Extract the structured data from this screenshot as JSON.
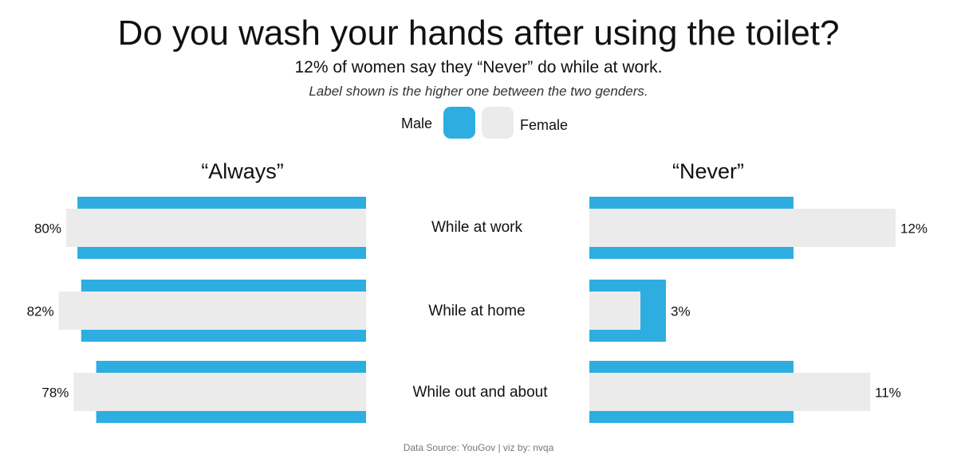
{
  "chart_data": {
    "type": "bar",
    "title": "Do you wash your hands after using the toilet?",
    "subtitle": "12% of women say they “Never” do while at work.",
    "note": "Label shown is the higher one between the two genders.",
    "legend": [
      {
        "name": "Male",
        "color": "#2eaee0"
      },
      {
        "name": "Female",
        "color": "#ebebeb"
      }
    ],
    "categories": [
      "While at work",
      "While at home",
      "While out and about"
    ],
    "panels": [
      {
        "title": "“Always”",
        "series": [
          {
            "name": "Male",
            "values": [
              77,
              76,
              72
            ]
          },
          {
            "name": "Female",
            "values": [
              80,
              82,
              78
            ]
          }
        ],
        "labels": [
          "80%",
          "82%",
          "78%"
        ]
      },
      {
        "title": "“Never”",
        "series": [
          {
            "name": "Male",
            "values": [
              8,
              3,
              8
            ]
          },
          {
            "name": "Female",
            "values": [
              12,
              2,
              11
            ]
          }
        ],
        "labels": [
          "12%",
          "3%",
          "11%"
        ]
      }
    ]
  },
  "footer": "Data Source: YouGov | viz by: nvqa"
}
